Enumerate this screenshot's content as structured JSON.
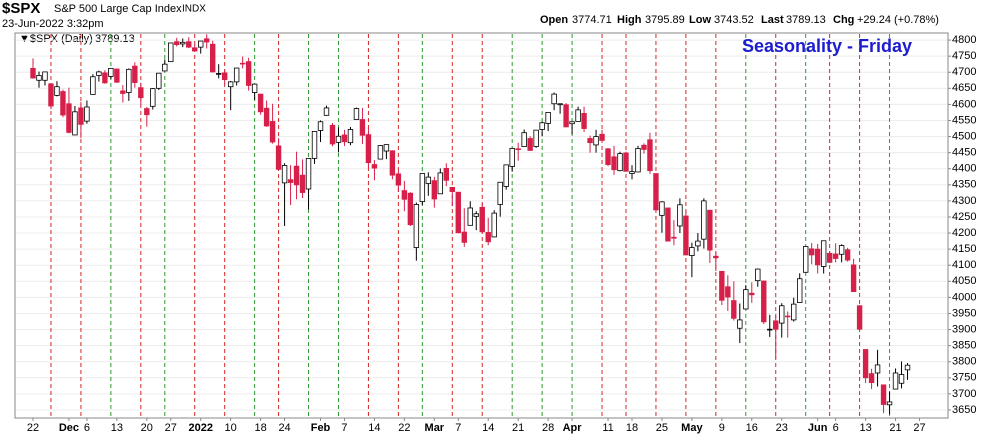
{
  "chart_data": {
    "type": "candlestick",
    "symbol": "$SPX",
    "name": "S&P 500 Large Cap Index",
    "exchange": "INDX",
    "date": "23-Jun-2022 3:32pm",
    "open_label": "Open",
    "open": 3774.71,
    "high_label": "High",
    "high": 3795.89,
    "low_label": "Low",
    "low": 3743.52,
    "last_label": "Last",
    "last": 3789.13,
    "chg_label": "Chg",
    "chg": "+29.24 (+0.78%)",
    "legend": "▼$SPX (Daily)",
    "title": "Seasonality - Friday",
    "up_color": "#000000",
    "down_color": "#d6204a",
    "marker_up_color": "#2e9a2e",
    "marker_down_color": "#d62828",
    "ylim": [
      3625,
      4822
    ],
    "yticks": [
      3650,
      3700,
      3750,
      3800,
      3850,
      3900,
      3950,
      4000,
      4050,
      4100,
      4150,
      4200,
      4250,
      4300,
      4350,
      4400,
      4450,
      4500,
      4550,
      4600,
      4650,
      4700,
      4750,
      4800
    ],
    "grid": true,
    "week_markers": [
      3,
      8,
      13,
      18,
      22,
      27,
      32,
      37,
      41,
      46,
      51,
      56,
      61,
      65,
      70,
      75,
      80,
      85,
      90,
      95,
      99,
      104,
      109,
      114,
      119,
      124,
      129,
      133,
      138,
      143
    ],
    "categories": [
      "22",
      null,
      null,
      null,
      null,
      null,
      "Dec",
      null,
      null,
      "6",
      null,
      null,
      null,
      null,
      "13",
      null,
      null,
      null,
      null,
      "20",
      null,
      null,
      null,
      "27",
      null,
      null,
      null,
      null,
      "2022",
      null,
      null,
      null,
      null,
      "10",
      null,
      null,
      null,
      null,
      "18",
      null,
      null,
      null,
      "24",
      null,
      null,
      null,
      null,
      null,
      "Feb",
      null,
      null,
      null,
      "7",
      null,
      null,
      null,
      null,
      "14",
      null,
      null,
      null,
      null,
      "22",
      null,
      null,
      null,
      null,
      "Mar",
      null,
      null,
      null,
      "7",
      null,
      null,
      null,
      null,
      "14",
      null,
      null,
      null,
      null,
      "21",
      null,
      null,
      null,
      null,
      "28",
      null,
      null,
      null,
      "Apr",
      null,
      null,
      null,
      null,
      null,
      "11",
      null,
      null,
      null,
      "18",
      null,
      null,
      null,
      null,
      "25",
      null,
      null,
      null,
      null,
      "May",
      null,
      null,
      null,
      null,
      "9",
      null,
      null,
      null,
      null,
      "16",
      null,
      null,
      null,
      null,
      "23",
      null,
      null,
      null,
      null,
      null,
      "Jun",
      null,
      null,
      "6",
      null,
      null,
      null,
      null,
      "13",
      null,
      null,
      null,
      null,
      "21",
      null,
      null,
      null,
      "27"
    ],
    "ohlc": [
      [
        4712,
        4743,
        4680,
        4682
      ],
      [
        4675,
        4702,
        4652,
        4690
      ],
      [
        4675,
        4702,
        4659,
        4701
      ],
      [
        4664,
        4664,
        4585,
        4595
      ],
      [
        4628,
        4672,
        4625,
        4655
      ],
      [
        4640,
        4646,
        4560,
        4567
      ],
      [
        4602,
        4652,
        4510,
        4513
      ],
      [
        4505,
        4595,
        4504,
        4577
      ],
      [
        4589,
        4608,
        4495,
        4538
      ],
      [
        4548,
        4612,
        4540,
        4592
      ],
      [
        4631,
        4694,
        4631,
        4686
      ],
      [
        4690,
        4705,
        4671,
        4701
      ],
      [
        4698,
        4706,
        4664,
        4667
      ],
      [
        4687,
        4713,
        4679,
        4712
      ],
      [
        4710,
        4711,
        4667,
        4669
      ],
      [
        4642,
        4660,
        4606,
        4634
      ],
      [
        4637,
        4712,
        4611,
        4709
      ],
      [
        4719,
        4731,
        4652,
        4668
      ],
      [
        4652,
        4667,
        4598,
        4621
      ],
      [
        4587,
        4592,
        4531,
        4568
      ],
      [
        4594,
        4651,
        4584,
        4649
      ],
      [
        4650,
        4698,
        4645,
        4697
      ],
      [
        4704,
        4740,
        4703,
        4725
      ],
      [
        4733,
        4791,
        4733,
        4791
      ],
      [
        4795,
        4807,
        4780,
        4786
      ],
      [
        4788,
        4805,
        4778,
        4793
      ],
      [
        4795,
        4809,
        4775,
        4778
      ],
      [
        4776,
        4787,
        4765,
        4766
      ],
      [
        4778,
        4797,
        4758,
        4797
      ],
      [
        4804,
        4818,
        4774,
        4794
      ],
      [
        4787,
        4798,
        4699,
        4701
      ],
      [
        4694,
        4725,
        4681,
        4696
      ],
      [
        4698,
        4708,
        4663,
        4677
      ],
      [
        4655,
        4673,
        4582,
        4670
      ],
      [
        4670,
        4714,
        4659,
        4713
      ],
      [
        4728,
        4749,
        4712,
        4726
      ],
      [
        4733,
        4745,
        4643,
        4659
      ],
      [
        4637,
        4665,
        4614,
        4663
      ],
      [
        4632,
        4632,
        4568,
        4577
      ],
      [
        4588,
        4612,
        4530,
        4533
      ],
      [
        4547,
        4602,
        4478,
        4483
      ],
      [
        4471,
        4495,
        4396,
        4398
      ],
      [
        4356,
        4417,
        4222,
        4410
      ],
      [
        4366,
        4411,
        4287,
        4357
      ],
      [
        4408,
        4453,
        4305,
        4350
      ],
      [
        4380,
        4429,
        4309,
        4326
      ],
      [
        4337,
        4432,
        4273,
        4432
      ],
      [
        4432,
        4517,
        4415,
        4516
      ],
      [
        4519,
        4550,
        4483,
        4546
      ],
      [
        4566,
        4596,
        4565,
        4589
      ],
      [
        4535,
        4542,
        4470,
        4477
      ],
      [
        4482,
        4528,
        4451,
        4501
      ],
      [
        4505,
        4521,
        4471,
        4484
      ],
      [
        4481,
        4530,
        4473,
        4522
      ],
      [
        4553,
        4590,
        4553,
        4587
      ],
      [
        4553,
        4589,
        4477,
        4504
      ],
      [
        4506,
        4527,
        4402,
        4419
      ],
      [
        4413,
        4427,
        4364,
        4402
      ],
      [
        4430,
        4473,
        4430,
        4472
      ],
      [
        4455,
        4475,
        4430,
        4475
      ],
      [
        4456,
        4457,
        4367,
        4380
      ],
      [
        4384,
        4394,
        4328,
        4349
      ],
      [
        4332,
        4362,
        4268,
        4305
      ],
      [
        4324,
        4327,
        4222,
        4226
      ],
      [
        4155,
        4295,
        4114,
        4289
      ],
      [
        4298,
        4385,
        4287,
        4385
      ],
      [
        4354,
        4389,
        4316,
        4374
      ],
      [
        4363,
        4375,
        4279,
        4306
      ],
      [
        4322,
        4401,
        4322,
        4387
      ],
      [
        4401,
        4417,
        4346,
        4364
      ],
      [
        4342,
        4342,
        4284,
        4329
      ],
      [
        4327,
        4328,
        4199,
        4201
      ],
      [
        4203,
        4277,
        4157,
        4171
      ],
      [
        4224,
        4299,
        4224,
        4278
      ],
      [
        4252,
        4268,
        4209,
        4260
      ],
      [
        4280,
        4292,
        4200,
        4204
      ],
      [
        4202,
        4247,
        4162,
        4173
      ],
      [
        4188,
        4271,
        4187,
        4262
      ],
      [
        4289,
        4358,
        4251,
        4358
      ],
      [
        4345,
        4412,
        4335,
        4412
      ],
      [
        4407,
        4465,
        4391,
        4463
      ],
      [
        4462,
        4481,
        4425,
        4461
      ],
      [
        4469,
        4522,
        4469,
        4512
      ],
      [
        4494,
        4501,
        4455,
        4457
      ],
      [
        4469,
        4520,
        4465,
        4520
      ],
      [
        4522,
        4546,
        4501,
        4543
      ],
      [
        4541,
        4575,
        4517,
        4575
      ],
      [
        4602,
        4637,
        4582,
        4632
      ],
      [
        4599,
        4603,
        4571,
        4602
      ],
      [
        4599,
        4604,
        4530,
        4530
      ],
      [
        4540,
        4546,
        4507,
        4546
      ],
      [
        4547,
        4593,
        4547,
        4583
      ],
      [
        4572,
        4593,
        4514,
        4525
      ],
      [
        4494,
        4503,
        4450,
        4481
      ],
      [
        4474,
        4521,
        4450,
        4500
      ],
      [
        4507,
        4521,
        4487,
        4488
      ],
      [
        4462,
        4464,
        4408,
        4413
      ],
      [
        4437,
        4471,
        4381,
        4397
      ],
      [
        4394,
        4453,
        4392,
        4447
      ],
      [
        4449,
        4453,
        4392,
        4392
      ],
      [
        4385,
        4411,
        4367,
        4391
      ],
      [
        4390,
        4471,
        4390,
        4463
      ],
      [
        4473,
        4479,
        4447,
        4460
      ],
      [
        4490,
        4512,
        4384,
        4394
      ],
      [
        4385,
        4385,
        4268,
        4272
      ],
      [
        4255,
        4299,
        4201,
        4297
      ],
      [
        4278,
        4279,
        4175,
        4175
      ],
      [
        4187,
        4240,
        4162,
        4184
      ],
      [
        4222,
        4308,
        4200,
        4288
      ],
      [
        4253,
        4270,
        4131,
        4132
      ],
      [
        4130,
        4170,
        4063,
        4155
      ],
      [
        4160,
        4200,
        4143,
        4175
      ],
      [
        4181,
        4308,
        4152,
        4300
      ],
      [
        4271,
        4271,
        4107,
        4147
      ],
      [
        4128,
        4140,
        4082,
        4123
      ],
      [
        4081,
        4082,
        3976,
        3991
      ],
      [
        4033,
        4069,
        3958,
        4001
      ],
      [
        3990,
        4050,
        3928,
        3935
      ],
      [
        3904,
        3981,
        3858,
        3930
      ],
      [
        3964,
        4038,
        3963,
        4024
      ],
      [
        4013,
        4047,
        3983,
        4008
      ],
      [
        4052,
        4090,
        4033,
        4088
      ],
      [
        4051,
        4051,
        3917,
        3924
      ],
      [
        3900,
        3946,
        3877,
        3901
      ],
      [
        3927,
        3944,
        3810,
        3901
      ],
      [
        3920,
        3982,
        3875,
        3974
      ],
      [
        3942,
        3956,
        3875,
        3941
      ],
      [
        3930,
        3999,
        3925,
        3979
      ],
      [
        3984,
        4075,
        3984,
        4058
      ],
      [
        4078,
        4158,
        4078,
        4158
      ],
      [
        4151,
        4169,
        4103,
        4132
      ],
      [
        4150,
        4166,
        4074,
        4101
      ],
      [
        4096,
        4177,
        4074,
        4176
      ],
      [
        4137,
        4143,
        4107,
        4109
      ],
      [
        4135,
        4168,
        4109,
        4121
      ],
      [
        4134,
        4165,
        4109,
        4161
      ],
      [
        4148,
        4154,
        4111,
        4116
      ],
      [
        4101,
        4120,
        4017,
        4018
      ],
      [
        3974,
        3976,
        3900,
        3901
      ],
      [
        3838,
        3838,
        3734,
        3750
      ],
      [
        3763,
        3778,
        3715,
        3735
      ],
      [
        3765,
        3837,
        3723,
        3790
      ],
      [
        3728,
        3728,
        3640,
        3667
      ],
      [
        3666,
        3707,
        3637,
        3675
      ],
      [
        3715,
        3779,
        3715,
        3765
      ],
      [
        3733,
        3801,
        3717,
        3760
      ],
      [
        3774.71,
        3795.89,
        3743.52,
        3789.13
      ],
      null,
      null
    ]
  }
}
